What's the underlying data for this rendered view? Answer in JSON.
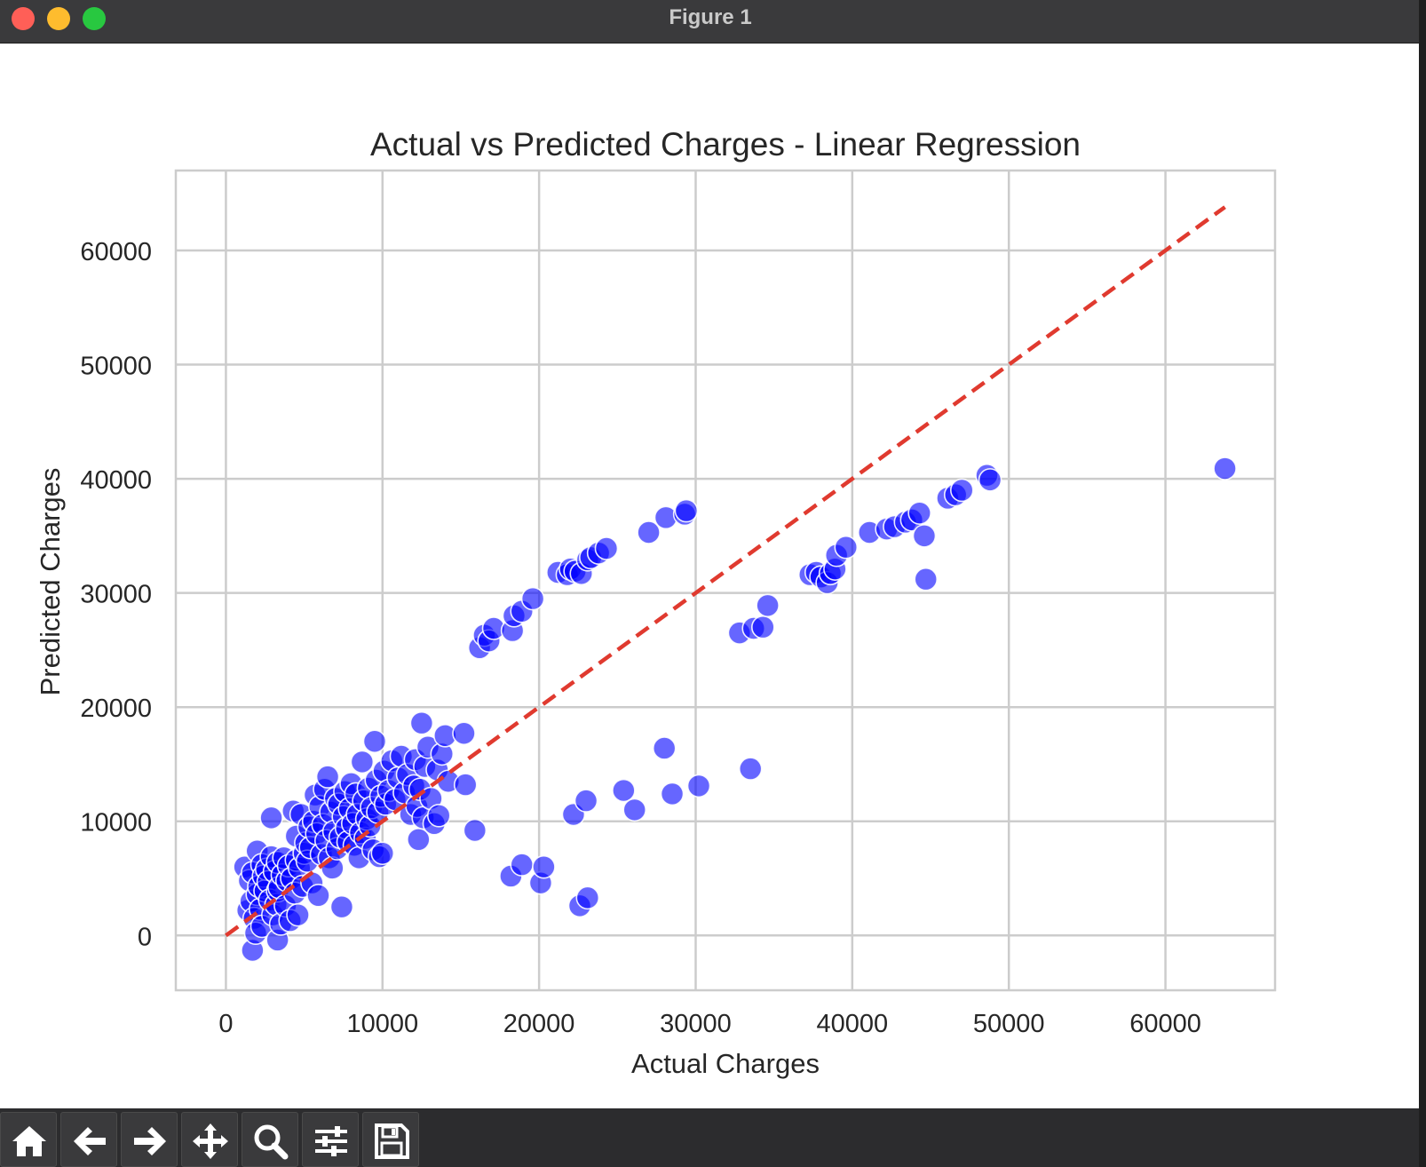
{
  "window": {
    "title": "Figure 1"
  },
  "toolbar": {
    "buttons": [
      {
        "name": "home-icon"
      },
      {
        "name": "back-arrow-icon"
      },
      {
        "name": "forward-arrow-icon"
      },
      {
        "name": "pan-move-icon"
      },
      {
        "name": "zoom-magnifier-icon"
      },
      {
        "name": "configure-subplots-icon"
      },
      {
        "name": "save-floppy-icon"
      }
    ]
  },
  "colors": {
    "points": "#0000ff",
    "points_alpha": 0.6,
    "reference_line": "#e03a2f",
    "grid": "#cccccc"
  },
  "chart_data": {
    "type": "scatter",
    "title": "Actual vs Predicted Charges - Linear Regression",
    "xlabel": "Actual Charges",
    "ylabel": "Predicted Charges",
    "xlim": [
      -3200,
      67000
    ],
    "ylim": [
      -4800,
      67000
    ],
    "xticks": [
      0,
      10000,
      20000,
      30000,
      40000,
      50000,
      60000
    ],
    "yticks": [
      0,
      10000,
      20000,
      30000,
      40000,
      50000,
      60000
    ],
    "grid": true,
    "reference_line": {
      "style": "dashed",
      "x": [
        0,
        63800
      ],
      "y": [
        0,
        63800
      ]
    },
    "points": [
      [
        1200,
        6000
      ],
      [
        1400,
        2200
      ],
      [
        1500,
        4800
      ],
      [
        1600,
        3000
      ],
      [
        1700,
        -1300
      ],
      [
        1700,
        5500
      ],
      [
        1800,
        1500
      ],
      [
        1900,
        200
      ],
      [
        2000,
        7400
      ],
      [
        2000,
        3600
      ],
      [
        2100,
        4300
      ],
      [
        2200,
        2300
      ],
      [
        2300,
        6200
      ],
      [
        2300,
        800
      ],
      [
        2400,
        5200
      ],
      [
        2500,
        3900
      ],
      [
        2600,
        5800
      ],
      [
        2700,
        4700
      ],
      [
        2800,
        3100
      ],
      [
        2900,
        10300
      ],
      [
        2900,
        6900
      ],
      [
        3000,
        1800
      ],
      [
        3100,
        5600
      ],
      [
        3200,
        2700
      ],
      [
        3300,
        6400
      ],
      [
        3300,
        3900
      ],
      [
        3300,
        -400
      ],
      [
        3400,
        4200
      ],
      [
        3500,
        1000
      ],
      [
        3600,
        5300
      ],
      [
        3700,
        6800
      ],
      [
        3800,
        2600
      ],
      [
        3900,
        4800
      ],
      [
        4000,
        6100
      ],
      [
        4100,
        1300
      ],
      [
        4200,
        5000
      ],
      [
        4300,
        10900
      ],
      [
        4400,
        3700
      ],
      [
        4500,
        6600
      ],
      [
        4500,
        8700
      ],
      [
        4600,
        1800
      ],
      [
        4700,
        5900
      ],
      [
        4800,
        10600
      ],
      [
        4900,
        4300
      ],
      [
        5000,
        7200
      ],
      [
        5100,
        8100
      ],
      [
        5200,
        6500
      ],
      [
        5300,
        9500
      ],
      [
        5400,
        7700
      ],
      [
        5500,
        4600
      ],
      [
        5600,
        10000
      ],
      [
        5700,
        12300
      ],
      [
        5800,
        8900
      ],
      [
        5900,
        3500
      ],
      [
        6000,
        11300
      ],
      [
        6100,
        7100
      ],
      [
        6200,
        9700
      ],
      [
        6300,
        12800
      ],
      [
        6400,
        8300
      ],
      [
        6500,
        13900
      ],
      [
        6600,
        6800
      ],
      [
        6700,
        10800
      ],
      [
        6800,
        5900
      ],
      [
        6900,
        9100
      ],
      [
        7000,
        12000
      ],
      [
        7100,
        7600
      ],
      [
        7200,
        11500
      ],
      [
        7300,
        8600
      ],
      [
        7400,
        2500
      ],
      [
        7500,
        10400
      ],
      [
        7600,
        12600
      ],
      [
        7700,
        9400
      ],
      [
        7800,
        8200
      ],
      [
        7900,
        11100
      ],
      [
        8000,
        13300
      ],
      [
        8100,
        9800
      ],
      [
        8200,
        7900
      ],
      [
        8300,
        12400
      ],
      [
        8400,
        10600
      ],
      [
        8500,
        6800
      ],
      [
        8600,
        9000
      ],
      [
        8700,
        15200
      ],
      [
        8800,
        11800
      ],
      [
        8900,
        8500
      ],
      [
        9000,
        10200
      ],
      [
        9100,
        12900
      ],
      [
        9200,
        9600
      ],
      [
        9300,
        11200
      ],
      [
        9400,
        7500
      ],
      [
        9500,
        17000
      ],
      [
        9600,
        13600
      ],
      [
        9700,
        10800
      ],
      [
        9800,
        6900
      ],
      [
        9900,
        12200
      ],
      [
        10000,
        7200
      ],
      [
        10100,
        14400
      ],
      [
        10200,
        11500
      ],
      [
        10400,
        12700
      ],
      [
        10600,
        15300
      ],
      [
        10800,
        11900
      ],
      [
        11000,
        13800
      ],
      [
        11200,
        15700
      ],
      [
        11400,
        12500
      ],
      [
        11600,
        14100
      ],
      [
        11800,
        10600
      ],
      [
        12000,
        13100
      ],
      [
        12100,
        15400
      ],
      [
        12200,
        11300
      ],
      [
        12300,
        8400
      ],
      [
        12400,
        12800
      ],
      [
        12500,
        18600
      ],
      [
        12600,
        10300
      ],
      [
        12700,
        14800
      ],
      [
        12900,
        16500
      ],
      [
        13100,
        12000
      ],
      [
        13300,
        9800
      ],
      [
        13500,
        14500
      ],
      [
        13600,
        10500
      ],
      [
        13800,
        15900
      ],
      [
        14000,
        17500
      ],
      [
        14200,
        13500
      ],
      [
        15200,
        17700
      ],
      [
        15300,
        13200
      ],
      [
        15900,
        9200
      ],
      [
        16200,
        25200
      ],
      [
        16500,
        26300
      ],
      [
        16800,
        25800
      ],
      [
        17100,
        26900
      ],
      [
        18300,
        26700
      ],
      [
        18400,
        28000
      ],
      [
        18900,
        28400
      ],
      [
        19600,
        29500
      ],
      [
        21200,
        31800
      ],
      [
        21800,
        31600
      ],
      [
        22000,
        32100
      ],
      [
        22300,
        31900
      ],
      [
        22700,
        31700
      ],
      [
        23100,
        32900
      ],
      [
        23300,
        33100
      ],
      [
        23800,
        33500
      ],
      [
        24300,
        33900
      ],
      [
        27000,
        35300
      ],
      [
        28100,
        36600
      ],
      [
        29300,
        36900
      ],
      [
        29400,
        37200
      ],
      [
        18200,
        5200
      ],
      [
        18900,
        6200
      ],
      [
        20100,
        4600
      ],
      [
        20300,
        6000
      ],
      [
        22200,
        10600
      ],
      [
        22600,
        2600
      ],
      [
        23000,
        11800
      ],
      [
        23100,
        3300
      ],
      [
        25400,
        12700
      ],
      [
        26100,
        11000
      ],
      [
        28000,
        16400
      ],
      [
        28500,
        12400
      ],
      [
        30200,
        13100
      ],
      [
        33500,
        14600
      ],
      [
        32800,
        26500
      ],
      [
        33700,
        26900
      ],
      [
        34300,
        27000
      ],
      [
        34600,
        28900
      ],
      [
        37300,
        31600
      ],
      [
        37700,
        31800
      ],
      [
        38000,
        31400
      ],
      [
        38400,
        30900
      ],
      [
        38600,
        31700
      ],
      [
        38900,
        32100
      ],
      [
        39000,
        33300
      ],
      [
        39600,
        34000
      ],
      [
        41100,
        35300
      ],
      [
        42200,
        35600
      ],
      [
        42700,
        35800
      ],
      [
        43400,
        36200
      ],
      [
        43800,
        36400
      ],
      [
        44300,
        37000
      ],
      [
        44600,
        35000
      ],
      [
        44700,
        31200
      ],
      [
        46100,
        38300
      ],
      [
        46600,
        38600
      ],
      [
        47000,
        39000
      ],
      [
        48600,
        40300
      ],
      [
        48800,
        39900
      ],
      [
        63800,
        40900
      ]
    ]
  }
}
